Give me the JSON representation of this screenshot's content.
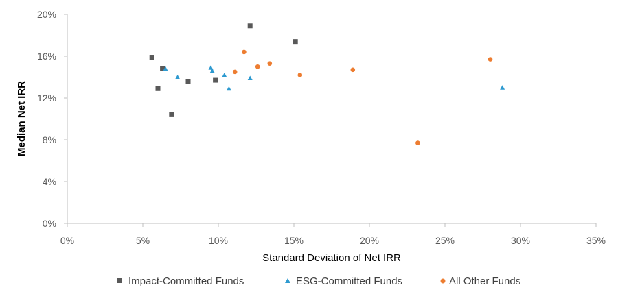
{
  "chart_data": {
    "type": "scatter",
    "xlabel": "Standard Deviation of Net IRR",
    "ylabel": "Median Net IRR",
    "xlim": [
      0,
      35
    ],
    "ylim": [
      0,
      20
    ],
    "x_ticks": [
      "0%",
      "5%",
      "10%",
      "15%",
      "20%",
      "25%",
      "30%",
      "35%"
    ],
    "y_ticks": [
      "0%",
      "4%",
      "8%",
      "12%",
      "16%",
      "20%"
    ],
    "grid": false,
    "legend_position": "bottom",
    "series": [
      {
        "name": "Impact-Committed Funds",
        "marker": "square",
        "color": "#595959",
        "points": [
          {
            "x": 5.6,
            "y": 15.9
          },
          {
            "x": 6.0,
            "y": 12.9
          },
          {
            "x": 6.3,
            "y": 14.8
          },
          {
            "x": 6.9,
            "y": 10.4
          },
          {
            "x": 8.0,
            "y": 13.6
          },
          {
            "x": 9.8,
            "y": 13.7
          },
          {
            "x": 12.1,
            "y": 18.9
          },
          {
            "x": 15.1,
            "y": 17.4
          }
        ]
      },
      {
        "name": "ESG-Committed Funds",
        "marker": "triangle",
        "color": "#2E9AD0",
        "points": [
          {
            "x": 6.5,
            "y": 14.8
          },
          {
            "x": 7.3,
            "y": 14.0
          },
          {
            "x": 9.5,
            "y": 14.9
          },
          {
            "x": 9.6,
            "y": 14.6
          },
          {
            "x": 10.4,
            "y": 14.2
          },
          {
            "x": 10.7,
            "y": 12.9
          },
          {
            "x": 12.1,
            "y": 13.9
          },
          {
            "x": 28.8,
            "y": 13.0
          }
        ]
      },
      {
        "name": "All Other Funds",
        "marker": "circle",
        "color": "#ED7D31",
        "points": [
          {
            "x": 11.1,
            "y": 14.5
          },
          {
            "x": 11.7,
            "y": 16.4
          },
          {
            "x": 12.6,
            "y": 15.0
          },
          {
            "x": 13.4,
            "y": 15.3
          },
          {
            "x": 15.4,
            "y": 14.2
          },
          {
            "x": 18.9,
            "y": 14.7
          },
          {
            "x": 23.2,
            "y": 7.7
          },
          {
            "x": 28.0,
            "y": 15.7
          }
        ]
      }
    ]
  }
}
